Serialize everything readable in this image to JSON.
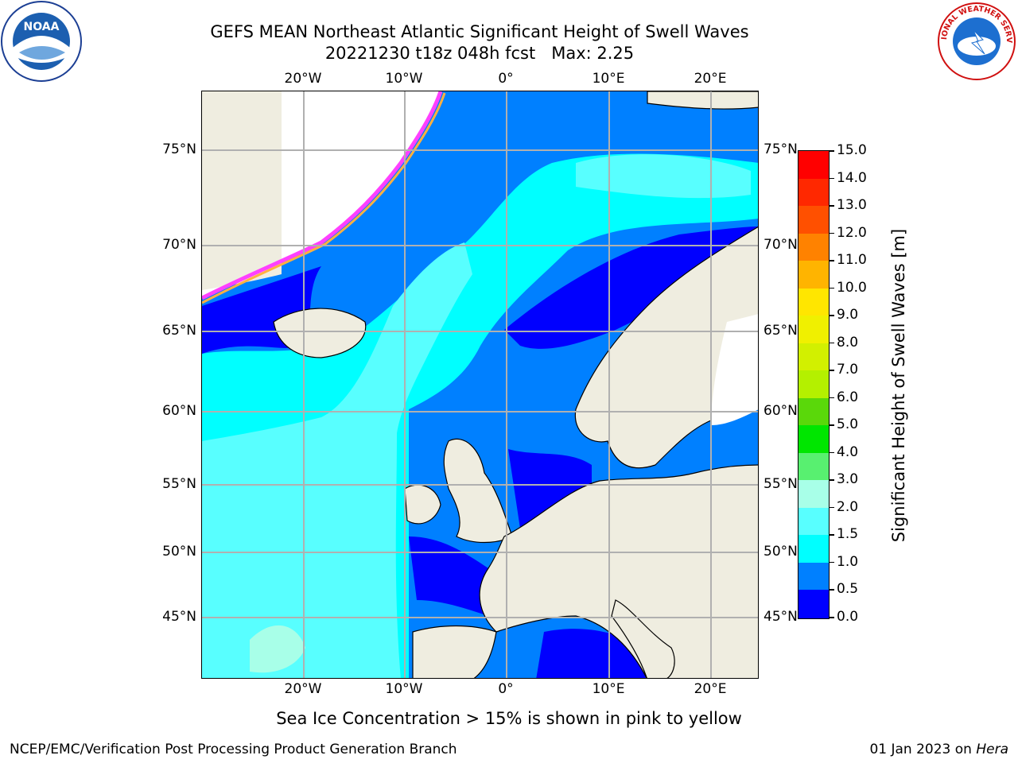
{
  "header": {
    "title_line1": "GEFS MEAN Northeast Atlantic Significant Height of Swell Waves",
    "title_line2": "20221230 t18z 048h fcst   Max: 2.25"
  },
  "logos": {
    "left": "NOAA",
    "right": "NATIONAL WEATHER SERVICE"
  },
  "map": {
    "lon_ticks": [
      "20°W",
      "10°W",
      "0°",
      "10°E",
      "20°E"
    ],
    "lat_ticks": [
      "75°N",
      "70°N",
      "65°N",
      "60°N",
      "55°N",
      "50°N",
      "45°N"
    ],
    "colors": {
      "land": "#efede0",
      "ice_free_white": "#ffffff",
      "grid": "#b0b0b0"
    }
  },
  "colorbar": {
    "label": "Significant Height of Swell Waves [m]",
    "ticks": [
      "15.0",
      "14.0",
      "13.0",
      "12.0",
      "11.0",
      "10.0",
      "9.0",
      "8.0",
      "7.0",
      "6.0",
      "5.0",
      "4.0",
      "3.0",
      "2.0",
      "1.5",
      "1.0",
      "0.5",
      "0.0"
    ],
    "colors": [
      "#ff0000",
      "#ff2800",
      "#ff5000",
      "#ff8200",
      "#ffb400",
      "#ffe600",
      "#f0f000",
      "#d2f000",
      "#b4f000",
      "#5ad80a",
      "#00e600",
      "#58f070",
      "#a8ffe8",
      "#58ffff",
      "#00ffff",
      "#0080ff",
      "#0000ff"
    ]
  },
  "footer": {
    "ice_note": "Sea Ice Concentration > 15% is shown in pink to yellow",
    "left": "NCEP/EMC/Verification Post Processing Product Generation Branch",
    "date": "01 Jan 2023",
    "on": " on ",
    "machine": "Hera"
  }
}
